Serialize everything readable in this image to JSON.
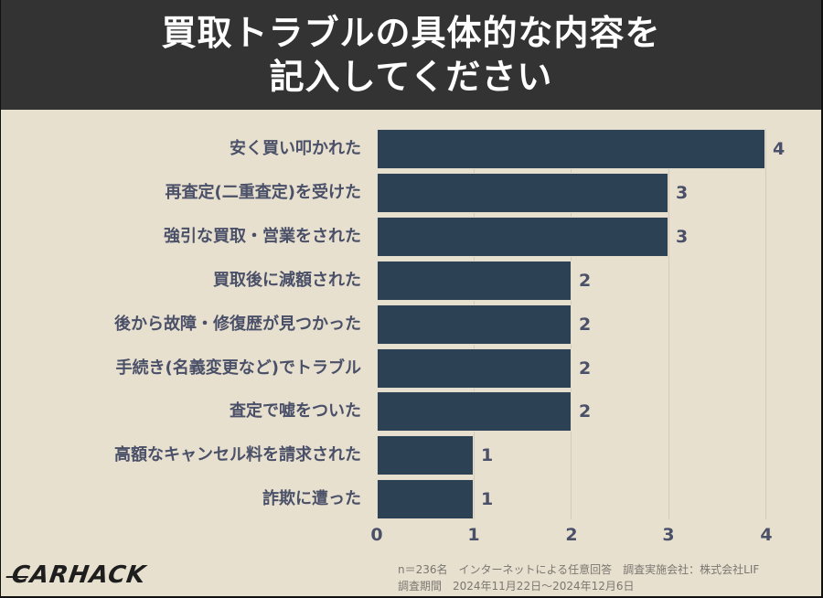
{
  "header": {
    "title_line1": "買取トラブルの具体的な内容を",
    "title_line2": "記入してください"
  },
  "colors": {
    "header_bg": "#333333",
    "background": "#e8e0cf",
    "bar": "#2d4155",
    "label_text": "#4a5068",
    "gridline": "#d3cbbb"
  },
  "chart_data": {
    "type": "bar",
    "orientation": "horizontal",
    "title": "買取トラブルの具体的な内容を記入してください",
    "categories": [
      "安く買い叩かれた",
      "再査定(二重査定)を受けた",
      "強引な買取・営業をされた",
      "買取後に減額された",
      "後から故障・修復歴が見つかった",
      "手続き(名義変更など)でトラブル",
      "査定で嘘をついた",
      "高額なキャンセル料を請求された",
      "詐欺に遭った"
    ],
    "values": [
      4,
      3,
      3,
      2,
      2,
      2,
      2,
      1,
      1
    ],
    "value_labels": [
      "4",
      "3",
      "3",
      "2",
      "2",
      "2",
      "2",
      "1",
      "1"
    ],
    "xlabel": "",
    "ylabel": "",
    "xlim": [
      0,
      4
    ],
    "x_ticks": [
      "0",
      "1",
      "2",
      "3",
      "4"
    ],
    "grid": true,
    "legend": "none"
  },
  "footer": {
    "logo": "CARHACK",
    "note_line1": "n＝236名　インターネットによる任意回答　調査実施会社：株式会社LIF",
    "note_line2": "調査期間　2024年11月22日〜2024年12月6日"
  }
}
